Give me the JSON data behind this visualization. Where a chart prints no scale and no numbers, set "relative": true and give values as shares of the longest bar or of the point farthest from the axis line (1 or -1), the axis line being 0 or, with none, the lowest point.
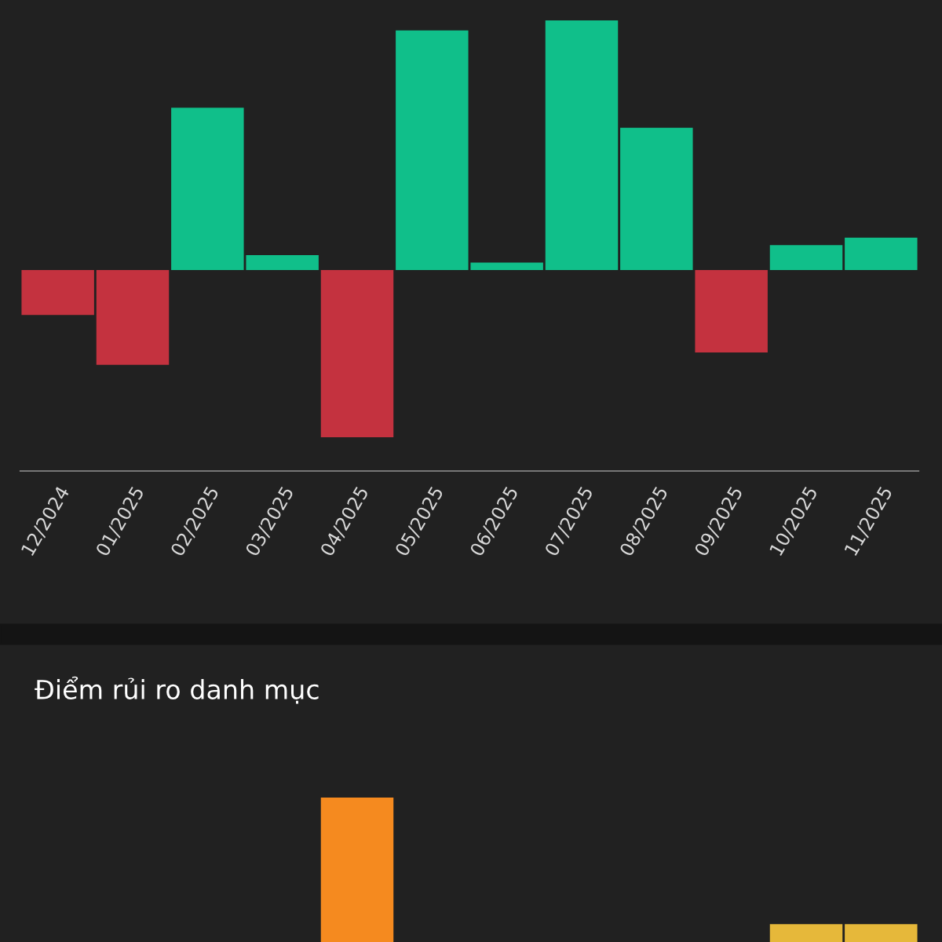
{
  "chart_data": [
    {
      "type": "bar",
      "relative": true,
      "categories": [
        "12/2024",
        "01/2025",
        "02/2025",
        "03/2025",
        "04/2025",
        "05/2025",
        "06/2025",
        "07/2025",
        "08/2025",
        "09/2025",
        "10/2025",
        "11/2025"
      ],
      "values": [
        -0.18,
        -0.38,
        0.65,
        0.06,
        -0.67,
        0.96,
        0.03,
        1,
        0.57,
        -0.33,
        0.1,
        0.13
      ],
      "colors": [
        "#c4323f",
        "#c4323f",
        "#10bf8a",
        "#10bf8a",
        "#c4323f",
        "#10bf8a",
        "#10bf8a",
        "#10bf8a",
        "#10bf8a",
        "#c4323f",
        "#10bf8a",
        "#10bf8a"
      ]
    },
    {
      "type": "bar",
      "relative": true,
      "title": "Điểm rủi ro danh mục",
      "categories": [
        null,
        null,
        null,
        null,
        null,
        null,
        null,
        null,
        null,
        null,
        null,
        null
      ],
      "values": [
        null,
        null,
        null,
        null,
        1,
        null,
        null,
        null,
        null,
        null,
        0.58,
        0.58
      ],
      "colors": [
        "#f58a1f",
        "#f58a1f",
        "#f58a1f",
        "#f58a1f",
        "#f58a1f",
        "#f58a1f",
        "#f58a1f",
        "#f58a1f",
        "#f58a1f",
        "#f58a1f",
        "#e6b83a",
        "#e6b83a"
      ]
    }
  ]
}
